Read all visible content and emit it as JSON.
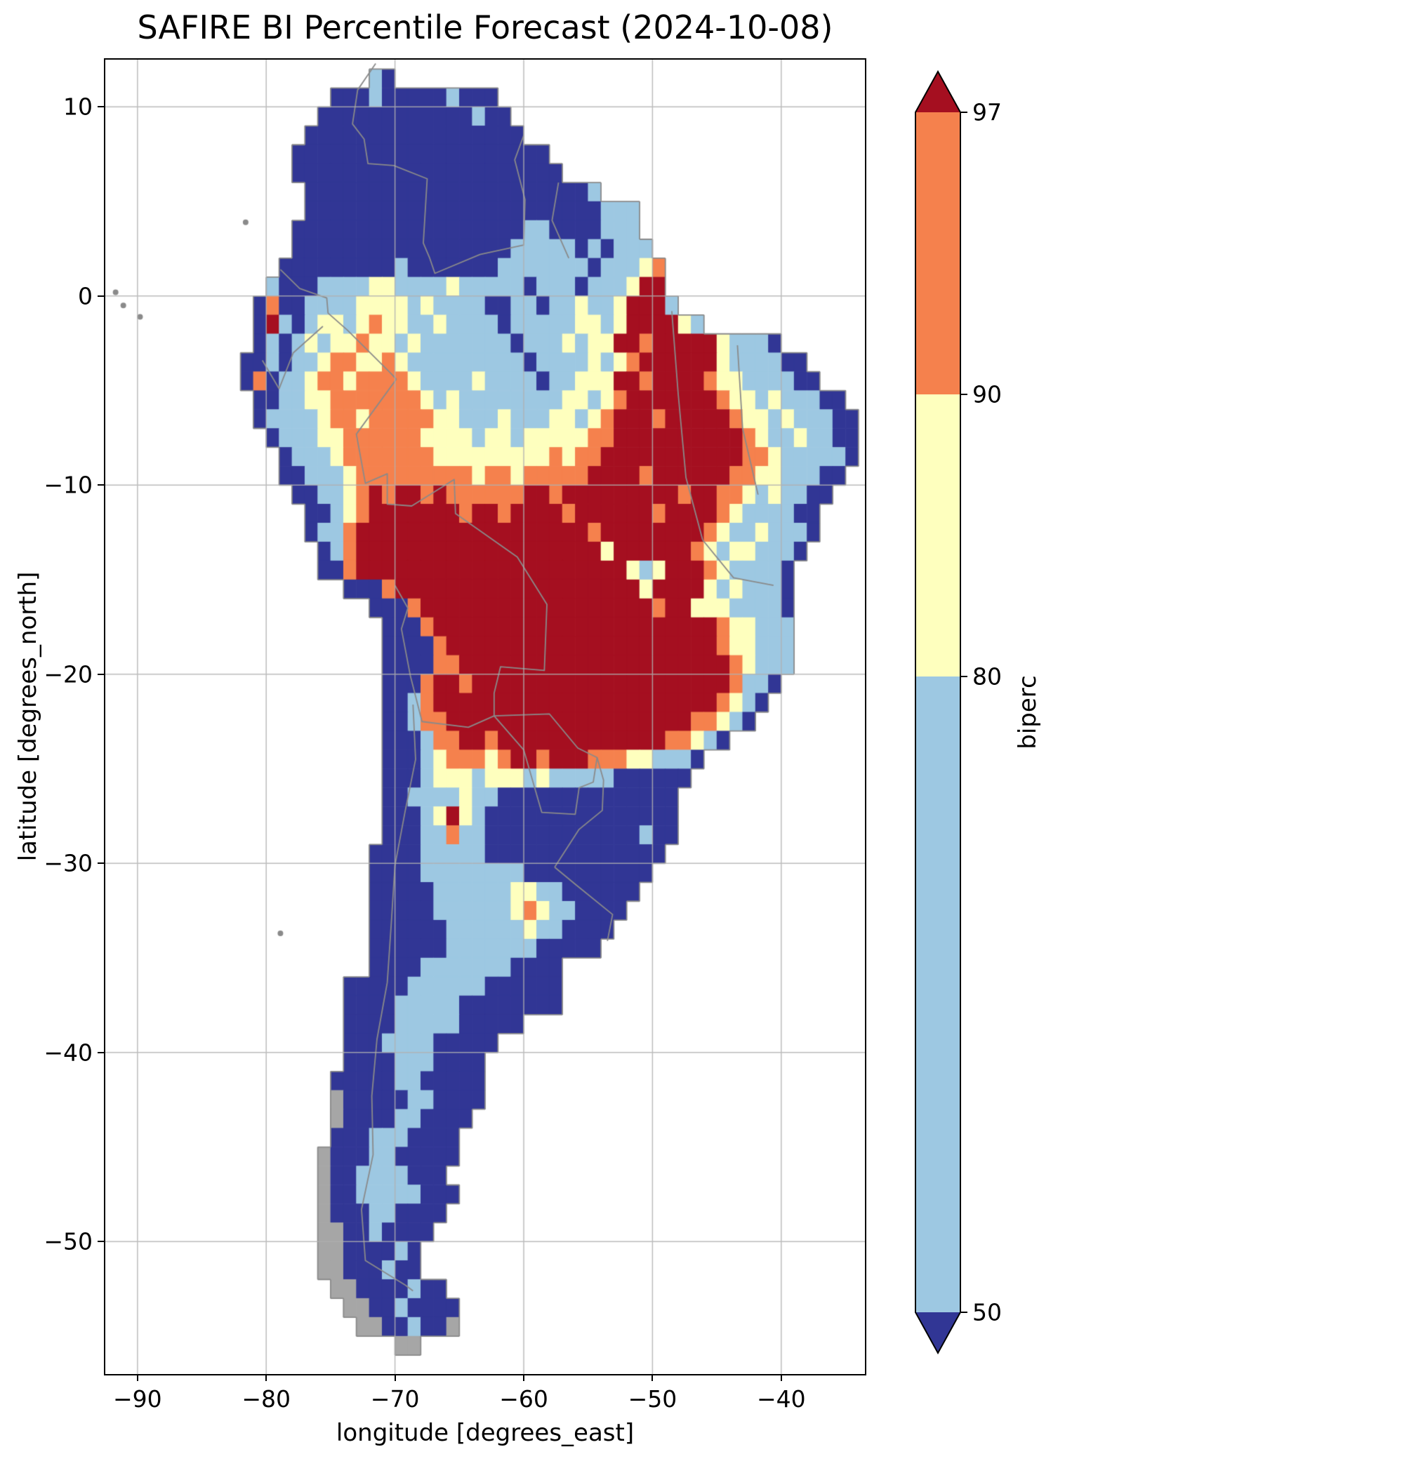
{
  "title": "SAFIRE BI Percentile Forecast (2024-10-08)",
  "date": "2024-10-08",
  "colorbar": {
    "label": "biperc",
    "tick_labels": [
      "97",
      "90",
      "80",
      "50"
    ],
    "tick_values": [
      97,
      90,
      80,
      50
    ],
    "segments": [
      {
        "range": "> 97",
        "color": "#a50f20",
        "shape": "triangle-up"
      },
      {
        "range": "90–97",
        "color": "#f5814d",
        "shape": "rect"
      },
      {
        "range": "80–90",
        "color": "#feffbe",
        "shape": "rect"
      },
      {
        "range": "50–80",
        "color": "#9dc8e2",
        "shape": "rect"
      },
      {
        "range": "< 50",
        "color": "#313695",
        "shape": "triangle-down"
      }
    ]
  },
  "chart_data": {
    "type": "heatmap",
    "title": "SAFIRE BI Percentile Forecast (2024-10-08)",
    "xlabel": "longitude [degrees_east]",
    "ylabel": "latitude [degrees_north]",
    "x_ticks": [
      "−90",
      "−80",
      "−70",
      "−60",
      "−50",
      "−40"
    ],
    "x_tick_values": [
      -90,
      -80,
      -70,
      -60,
      -50,
      -40
    ],
    "y_ticks": [
      "10",
      "0",
      "−10",
      "−20",
      "−30",
      "−40",
      "−50"
    ],
    "y_tick_values": [
      10,
      0,
      -10,
      -20,
      -30,
      -40,
      -50
    ],
    "xlim": [
      -92.5,
      -33.5
    ],
    "ylim": [
      -57.0,
      12.5
    ],
    "grid": true,
    "grid_color": "#b0b0b0",
    "border_color": "#8a8a8a",
    "colorbar_label": "biperc",
    "levels": [
      50,
      80,
      90,
      97
    ],
    "palette": {
      "1": "#313695",
      "2": "#9dc8e2",
      "3": "#feffbe",
      "4": "#f5814d",
      "5": "#a50f20",
      "g": "#a6a6a6"
    },
    "classes": [
      {
        "code": "1",
        "biperc": "< 50"
      },
      {
        "code": "2",
        "biperc": "50–80"
      },
      {
        "code": "3",
        "biperc": "80–90"
      },
      {
        "code": "4",
        "biperc": "90–97"
      },
      {
        "code": "5",
        "biperc": "> 97"
      },
      {
        "code": "g",
        "biperc": "no data (outline only)"
      }
    ],
    "grid_origin": {
      "lon_west": -90,
      "lat_north": 12,
      "cell_deg": 1
    },
    "rows": [
      "..................21....................................",
      "...............1112111112111............................",
      "..............111111111111211...........................",
      ".............11111111111111111..........................",
      "............11111111111111111111........................",
      "............111111111111111111111.......................",
      ".............11111111111111111111112....................",
      ".............11111111111111111111111222.................",
      "............111111111111111111221111222.................",
      "............1111111111111111122222121222................",
      "...........111111111211111112222222122234...............",
      "..........2111222233222232222212221222355...............",
      ".........141122223333232222112212232235552..............",
      ".........15212332343322322221222223323555532............",
      ".........12123233433232222222122232335545555532221......",
      "........11212234433432222222221222232345555553222211....",
      "........141223443444432222322221223335545555433222211...",
      ".........1122334444444323222222223323455555554332322211.",
      ".........12222344344444332223222332345554555554332322211",
      "..........1222334444443333233233333445555555555432232211",
      "...........122234444444333333333434455555555555443222221",
      "...........11222344444444434434444455554555555443322211.",
      "............112234545545444444554555555555455443232211..",
      ".............1123455555554554555545555554555543222211...",
      ".............1224555555555555555555455555555432232221...",
      "..............12455555555555555555553555555432332221....",
      "..............1145555555555555555555553235554322221.....",
      "................11145555555555555555555355553232221.....",
      "..................111455555555555555555545533322221.....",
      "...................11145555555555555555555555433222.....",
      "...................11114555555555555555555555433222.....",
      "...................11114455555555555555555555543222.....",
      "...................1114554555555555555555555554221......",
      "...................112455555555555555555555554321.......",
      "...................11244555555555555555555544321........",
      "...................111244554555555555555544321..........",
      "...................1112344434554555444332221............",
      "...................111233323332322222111111.............",
      "...................11222232211111111111111..............",
      "...................11123532111111111111111..............",
      "...................11122422111111111111211..............",
      "..................11112222211111111111111...............",
      "..................1111222222221111111111................",
      "..................111112222223322111111.................",
      "..................11111222222343221111..................",
      "..................1111112222223221111...................",
      "..................111111222222211111....................",
      "..................111122222221111.......................",
      "................11111222222111111.......................",
      "................11112222211111111.......................",
      "................11112222211111..........................",
      "................111222211111............................",
      "................11112221111.............................",
      "...............111112211111.............................",
      "...............g11111221111.............................",
      "...............g1111221111..............................",
      "...............1112221111...............................",
      "..............g1112211111...............................",
      "..............g112222111................................",
      "..............g1122222111...............................",
      "..............g111221111................................",
      "..............gg1121111.................................",
      "..............gg111121..................................",
      "..............gg111211..................................",
      "...............gg1111211................................",
      "................gg1121111...............................",
      ".................gg11211g...............................",
      "....................gg..................................",
      "........................................................",
      "........................................................"
    ],
    "borders": [
      [
        [
          -71.5,
          12.3
        ],
        [
          -72.9,
          10.9
        ],
        [
          -73.3,
          9.1
        ],
        [
          -72.4,
          8.3
        ],
        [
          -72.1,
          7.0
        ],
        [
          -70.1,
          6.9
        ],
        [
          -67.5,
          6.2
        ],
        [
          -67.8,
          2.8
        ],
        [
          -67.3,
          2.0
        ],
        [
          -66.9,
          1.2
        ],
        [
          -63.4,
          2.2
        ],
        [
          -60.0,
          2.7
        ],
        [
          -59.9,
          5.1
        ],
        [
          -60.7,
          7.2
        ],
        [
          -60.0,
          8.5
        ]
      ],
      [
        [
          -57.3,
          6.0
        ],
        [
          -57.8,
          4.0
        ],
        [
          -56.5,
          2.0
        ]
      ],
      [
        [
          -78.9,
          1.4
        ],
        [
          -77.4,
          0.4
        ],
        [
          -75.3,
          -0.1
        ],
        [
          -75.2,
          -0.9
        ],
        [
          -73.7,
          -1.8
        ],
        [
          -70.3,
          -4.1
        ],
        [
          -69.9,
          -4.4
        ]
      ],
      [
        [
          -80.3,
          -3.4
        ],
        [
          -79.0,
          -4.9
        ],
        [
          -77.9,
          -3.0
        ],
        [
          -75.6,
          -1.6
        ]
      ],
      [
        [
          -69.9,
          -4.4
        ],
        [
          -73.0,
          -7.3
        ],
        [
          -72.3,
          -9.9
        ],
        [
          -70.6,
          -9.4
        ],
        [
          -70.6,
          -11.0
        ],
        [
          -68.7,
          -11.1
        ],
        [
          -65.4,
          -9.7
        ],
        [
          -65.3,
          -11.5
        ],
        [
          -60.5,
          -13.8
        ],
        [
          -58.2,
          -16.3
        ],
        [
          -58.4,
          -19.8
        ],
        [
          -61.8,
          -19.6
        ],
        [
          -62.3,
          -21.0
        ],
        [
          -62.3,
          -22.2
        ]
      ],
      [
        [
          -70.0,
          -15.3
        ],
        [
          -69.0,
          -16.5
        ],
        [
          -69.5,
          -17.6
        ]
      ],
      [
        [
          -69.5,
          -17.6
        ],
        [
          -68.8,
          -20.1
        ],
        [
          -67.9,
          -22.5
        ],
        [
          -64.3,
          -22.8
        ],
        [
          -62.3,
          -22.2
        ]
      ],
      [
        [
          -68.6,
          -21.6
        ],
        [
          -68.4,
          -24.5
        ],
        [
          -69.2,
          -27.2
        ],
        [
          -70.0,
          -30.1
        ],
        [
          -70.3,
          -33.3
        ],
        [
          -70.6,
          -36.3
        ],
        [
          -71.4,
          -39.3
        ],
        [
          -71.8,
          -42.3
        ],
        [
          -71.7,
          -45.4
        ],
        [
          -72.6,
          -48.3
        ],
        [
          -72.3,
          -51.0
        ],
        [
          -69.2,
          -52.3
        ],
        [
          -68.6,
          -52.6
        ]
      ],
      [
        [
          -62.3,
          -22.2
        ],
        [
          -60.0,
          -24.0
        ],
        [
          -58.6,
          -27.3
        ],
        [
          -56.0,
          -27.4
        ],
        [
          -55.7,
          -26.0
        ],
        [
          -54.6,
          -25.7
        ],
        [
          -54.3,
          -24.4
        ],
        [
          -55.8,
          -23.9
        ],
        [
          -58.0,
          -22.1
        ],
        [
          -62.3,
          -22.2
        ]
      ],
      [
        [
          -54.3,
          -24.4
        ],
        [
          -53.8,
          -25.6
        ],
        [
          -53.9,
          -27.2
        ],
        [
          -55.7,
          -28.2
        ],
        [
          -57.6,
          -30.2
        ]
      ],
      [
        [
          -57.6,
          -30.2
        ],
        [
          -56.0,
          -31.1
        ],
        [
          -53.1,
          -32.7
        ],
        [
          -53.5,
          -34.1
        ]
      ],
      [
        [
          -48.5,
          -0.8
        ],
        [
          -48.0,
          -5.2
        ],
        [
          -47.4,
          -9.6
        ],
        [
          -46.1,
          -12.9
        ]
      ],
      [
        [
          -43.4,
          -2.6
        ],
        [
          -43.0,
          -7.0
        ],
        [
          -41.8,
          -10.5
        ]
      ],
      [
        [
          -46.1,
          -12.9
        ],
        [
          -43.7,
          -14.9
        ],
        [
          -40.6,
          -15.3
        ]
      ]
    ],
    "islands": [
      [
        -91.1,
        -0.5
      ],
      [
        -89.8,
        -1.1
      ],
      [
        -91.7,
        0.2
      ],
      [
        -81.6,
        3.9
      ],
      [
        -78.9,
        -33.7
      ]
    ]
  }
}
